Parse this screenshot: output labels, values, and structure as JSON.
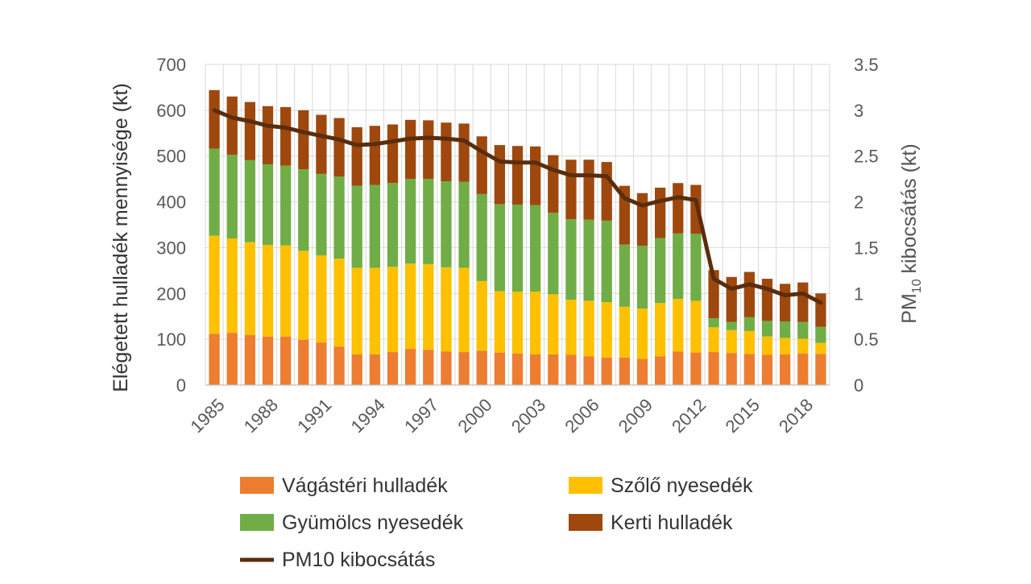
{
  "chart_data": {
    "type": "bar",
    "stacked": true,
    "x": [
      1985,
      1986,
      1987,
      1988,
      1989,
      1990,
      1991,
      1992,
      1993,
      1994,
      1995,
      1996,
      1997,
      1998,
      1999,
      2000,
      2001,
      2002,
      2003,
      2004,
      2005,
      2006,
      2007,
      2008,
      2009,
      2010,
      2011,
      2012,
      2013,
      2014,
      2015,
      2016,
      2017,
      2018,
      2019
    ],
    "x_tick_labels": [
      "1985",
      "1988",
      "1991",
      "1994",
      "1997",
      "2000",
      "2003",
      "2006",
      "2009",
      "2012",
      "2015",
      "2018"
    ],
    "ylabel": "Elégetett hulladék mennyisége (kt)",
    "y2label_main": "PM",
    "y2label_sub": "10",
    "y2label_rest": " kibocsátás (kt)",
    "ylim": [
      0,
      700
    ],
    "y_ticks": [
      "0",
      "100",
      "200",
      "300",
      "400",
      "500",
      "600",
      "700"
    ],
    "y2lim": [
      0,
      3.5
    ],
    "y2_ticks": [
      "0",
      "0.5",
      "1",
      "1.5",
      "2",
      "2.5",
      "3",
      "3.5"
    ],
    "grid": true,
    "legend_position": "bottom",
    "series": [
      {
        "name": "Vágástéri hulladék",
        "color": "#ED7D31",
        "values": [
          112,
          114,
          109,
          106,
          106,
          99,
          93,
          84,
          67,
          67,
          72,
          79,
          77,
          73,
          72,
          75,
          71,
          69,
          67,
          67,
          66,
          63,
          60,
          60,
          57,
          63,
          73,
          71,
          72,
          70,
          68,
          66,
          67,
          69,
          68
        ]
      },
      {
        "name": "Szőlő nyesedék",
        "color": "#FFC000",
        "values": [
          214,
          206,
          203,
          200,
          199,
          194,
          190,
          192,
          189,
          189,
          186,
          186,
          187,
          184,
          184,
          152,
          134,
          135,
          137,
          131,
          120,
          121,
          121,
          111,
          110,
          116,
          115,
          113,
          54,
          50,
          50,
          40,
          36,
          32,
          24
        ]
      },
      {
        "name": "Gyümölcs nyesedék",
        "color": "#70AD47",
        "values": [
          190,
          183,
          179,
          176,
          174,
          178,
          178,
          179,
          179,
          181,
          183,
          185,
          186,
          188,
          188,
          190,
          190,
          190,
          189,
          178,
          176,
          177,
          178,
          136,
          137,
          142,
          143,
          146,
          20,
          18,
          30,
          34,
          36,
          37,
          35
        ]
      },
      {
        "name": "Kerti hulladék",
        "color": "#9E480E",
        "values": [
          128,
          127,
          127,
          127,
          128,
          129,
          129,
          128,
          128,
          129,
          128,
          129,
          128,
          128,
          127,
          126,
          129,
          128,
          128,
          126,
          130,
          131,
          128,
          128,
          115,
          110,
          110,
          107,
          105,
          98,
          99,
          92,
          82,
          86,
          73
        ]
      }
    ],
    "line_series": {
      "name": "PM10 kibocsátás",
      "color": "#5A2D0C",
      "axis": "right",
      "values": [
        3.0,
        2.92,
        2.88,
        2.83,
        2.81,
        2.76,
        2.72,
        2.68,
        2.62,
        2.63,
        2.66,
        2.69,
        2.7,
        2.69,
        2.67,
        2.55,
        2.44,
        2.43,
        2.43,
        2.35,
        2.29,
        2.29,
        2.28,
        2.04,
        1.96,
        2.01,
        2.05,
        2.02,
        1.16,
        1.05,
        1.1,
        1.05,
        0.98,
        1.0,
        0.9
      ]
    }
  }
}
